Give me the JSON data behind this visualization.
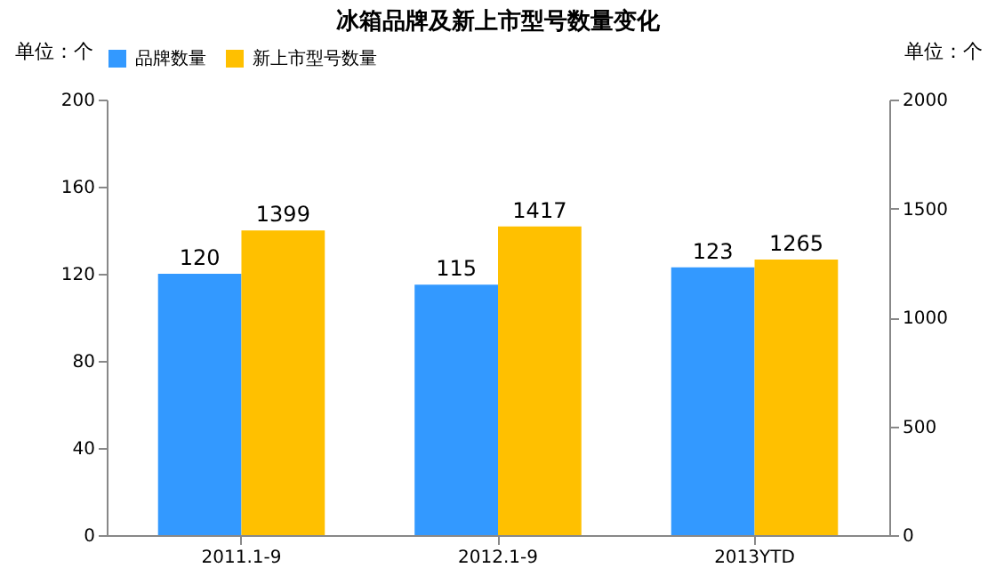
{
  "chart_data": {
    "type": "bar",
    "title": "冰箱品牌及新上市型号数量变化",
    "categories": [
      "2011.1-9",
      "2012.1-9",
      "2013YTD"
    ],
    "series": [
      {
        "name": "品牌数量",
        "color": "#3399ff",
        "values": [
          120,
          115,
          123
        ]
      },
      {
        "name": "新上市型号数量",
        "color": "#ffc000",
        "values": [
          1399,
          1417,
          1265
        ],
        "axis": "y2"
      }
    ],
    "ylabel": "单位：个",
    "y2label": "单位：个",
    "ylim": [
      0,
      200
    ],
    "yticks": [
      0,
      40,
      80,
      120,
      160,
      200
    ],
    "y2lim": [
      0,
      2000
    ],
    "y2ticks": [
      0,
      500,
      1000,
      1500,
      2000
    ],
    "data_labels": true,
    "legend": "top",
    "grid": false
  }
}
